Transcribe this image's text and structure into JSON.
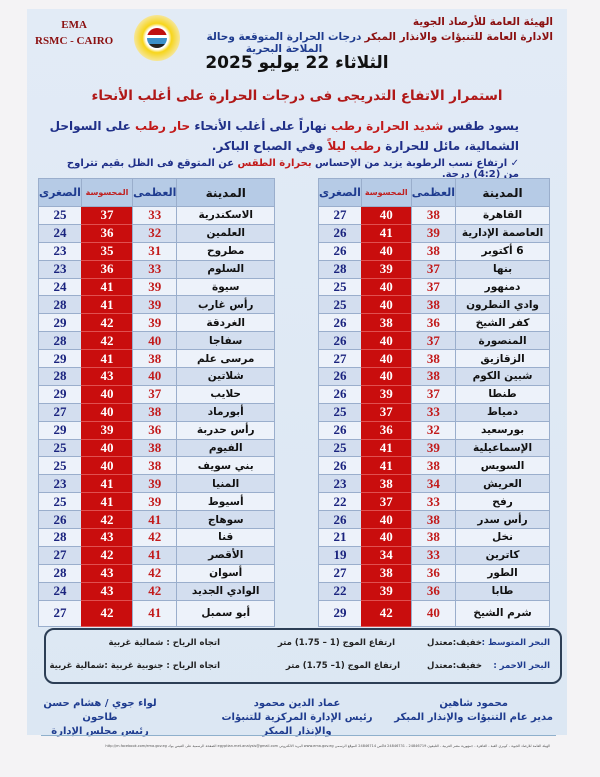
{
  "header": {
    "org_line1": "الهيئة العامة للأرصاد الجوية",
    "org_line2": "الادارة العامة للتنبؤات والانذار المبكر",
    "ema": "EMA",
    "rsmc": "RSMC - CAIRO",
    "subtitle": "درجات الحرارة المتوقعة وحالة الملاحة البحرية",
    "date": "الثلاثاء 22 يوليو 2025"
  },
  "headline": "استمرار الاتفاع التدريجى فى درجات الحرارة على أغلب الأنحاء",
  "summary": {
    "a": "يسود طقس ",
    "b": "شديد الحرارة رطب ",
    "c": "نهاراً على أغلب الأنحاء ",
    "d": "حار رطب ",
    "e": "على السواحل الشمالية، مائل للحرارة ",
    "f": "رطب ",
    "g": "ليلاً ",
    "h": "وفي الصباح الباكر."
  },
  "note": {
    "a": "✓ ارتفاع نسب الرطوبة يزيد من الإحساس ",
    "b": "بحرارة الطقس ",
    "c": "عن المتوقع فى الظل بقيم تتراوح من (4:2) درجة."
  },
  "columns": {
    "city": "المدينة",
    "max": "العظمى",
    "feels": "المحسوسة",
    "min": "الصغرى"
  },
  "colors": {
    "feels_bg": "#c90d0d",
    "max_text": "#c21a1a",
    "min_text": "#1a237e"
  },
  "table_right": [
    [
      "القاهرة",
      38,
      40,
      27
    ],
    [
      "العاصمة الإدارية",
      39,
      41,
      26
    ],
    [
      "6 أكتوبر",
      38,
      40,
      26
    ],
    [
      "بنها",
      37,
      39,
      28
    ],
    [
      "دمنهور",
      37,
      40,
      25
    ],
    [
      "وادي النطرون",
      38,
      40,
      25
    ],
    [
      "كفر الشيخ",
      36,
      38,
      26
    ],
    [
      "المنصورة",
      37,
      40,
      26
    ],
    [
      "الزقازيق",
      38,
      40,
      27
    ],
    [
      "شبين الكوم",
      38,
      40,
      26
    ],
    [
      "طنطا",
      37,
      39,
      26
    ],
    [
      "دمياط",
      33,
      37,
      25
    ],
    [
      "بورسعيد",
      32,
      36,
      26
    ],
    [
      "الإسماعيلية",
      39,
      41,
      25
    ],
    [
      "السويس",
      38,
      41,
      26
    ],
    [
      "العريش",
      34,
      38,
      23
    ],
    [
      "رفح",
      33,
      37,
      22
    ],
    [
      "رأس سدر",
      38,
      40,
      26
    ],
    [
      "نخل",
      38,
      40,
      21
    ],
    [
      "كاترين",
      33,
      34,
      19
    ],
    [
      "الطور",
      36,
      38,
      27
    ],
    [
      "طابا",
      36,
      39,
      22
    ],
    [
      "شرم الشيخ",
      40,
      42,
      29
    ]
  ],
  "table_left": [
    [
      "الاسكندرية",
      33,
      37,
      25
    ],
    [
      "العلمين",
      32,
      36,
      24
    ],
    [
      "مطروح",
      31,
      35,
      23
    ],
    [
      "السلوم",
      33,
      36,
      23
    ],
    [
      "سيوة",
      39,
      41,
      24
    ],
    [
      "رأس غارب",
      39,
      41,
      28
    ],
    [
      "الغردقة",
      39,
      42,
      29
    ],
    [
      "سفاجا",
      40,
      42,
      28
    ],
    [
      "مرسى علم",
      38,
      41,
      29
    ],
    [
      "شلاتين",
      40,
      43,
      28
    ],
    [
      "حلايب",
      37,
      40,
      29
    ],
    [
      "أبورماد",
      38,
      40,
      27
    ],
    [
      "رأس حدربة",
      36,
      39,
      29
    ],
    [
      "الفيوم",
      38,
      40,
      25
    ],
    [
      "بني سويف",
      38,
      40,
      25
    ],
    [
      "المنيا",
      39,
      41,
      23
    ],
    [
      "أسيوط",
      39,
      41,
      25
    ],
    [
      "سوهاج",
      41,
      42,
      26
    ],
    [
      "قنا",
      42,
      43,
      28
    ],
    [
      "الأقصر",
      41,
      42,
      27
    ],
    [
      "أسوان",
      42,
      43,
      28
    ],
    [
      "الوادي الجديد",
      42,
      43,
      24
    ],
    [
      "أبو سمبل",
      41,
      42,
      27
    ]
  ],
  "sea": [
    {
      "name": "البحر المتوسط :",
      "state": "خفيف:معتدل",
      "wave": "ارتفاع الموج (1 – 1.75) متر",
      "wind": "اتجاه الرياح : شمالية غربية"
    },
    {
      "name": "البحر الاحمر  :",
      "state": "خفيف:معتدل",
      "wave": "ارتفاع الموج (1– 1.75) متر",
      "wind": "اتجاه الرياح : جنوبية غربية :شمالية غربية"
    }
  ],
  "signatures": [
    {
      "name": "محمود شاهين",
      "title": "مدير عام التنبؤات والإنذار المبكر"
    },
    {
      "name": "عماد الدين محمود",
      "title": "رئيس الإدارة المركزية للتنبؤات والإنذار المبكر"
    },
    {
      "name": "لواء جوي / هشام حسن طاحون",
      "title": "رئيس مجلس الإدارة"
    }
  ],
  "footer": "الهيئة العامة للارصاد الجوية - كوبري القبة - القاهرة - جمهورية مصر العربية - التليفون 24846719 - 24846731 فاكس 24846714 الموقع الرسمي www.ema.gov.eg البريد الالكتروني egyptian.met.analysis@gmail.com الصفحة الرسمية على الفيس بوك http://m.facebook.com/ema.gov.eg"
}
